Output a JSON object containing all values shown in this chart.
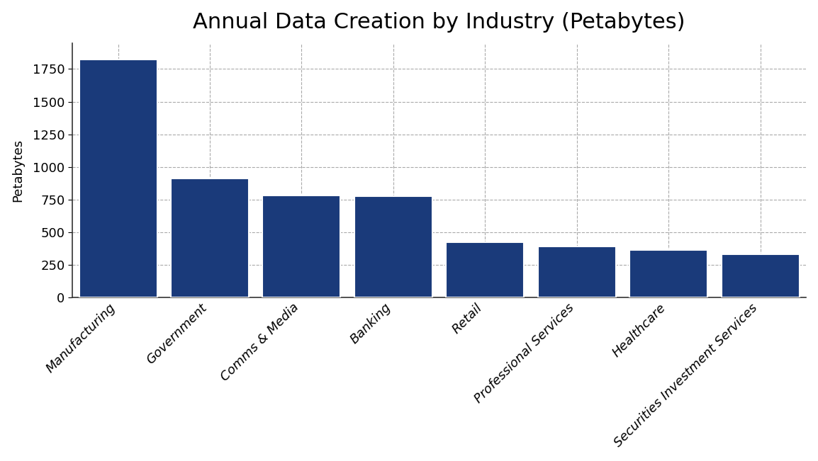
{
  "title": "Annual Data Creation by Industry (Petabytes)",
  "categories": [
    "Manufacturing",
    "Government",
    "Comms & Media",
    "Banking",
    "Retail",
    "Professional Services",
    "Healthcare",
    "Securities Investment Services"
  ],
  "values": [
    1820,
    910,
    780,
    775,
    425,
    390,
    365,
    330
  ],
  "bar_color": "#1a3a7a",
  "ylabel": "Petabytes",
  "ylim": [
    0,
    1950
  ],
  "yticks": [
    0,
    250,
    500,
    750,
    1000,
    1250,
    1500,
    1750
  ],
  "background_color": "#ffffff",
  "grid_color": "#aaaaaa",
  "title_fontsize": 22,
  "label_fontsize": 13,
  "tick_fontsize": 13,
  "bar_width": 0.85
}
